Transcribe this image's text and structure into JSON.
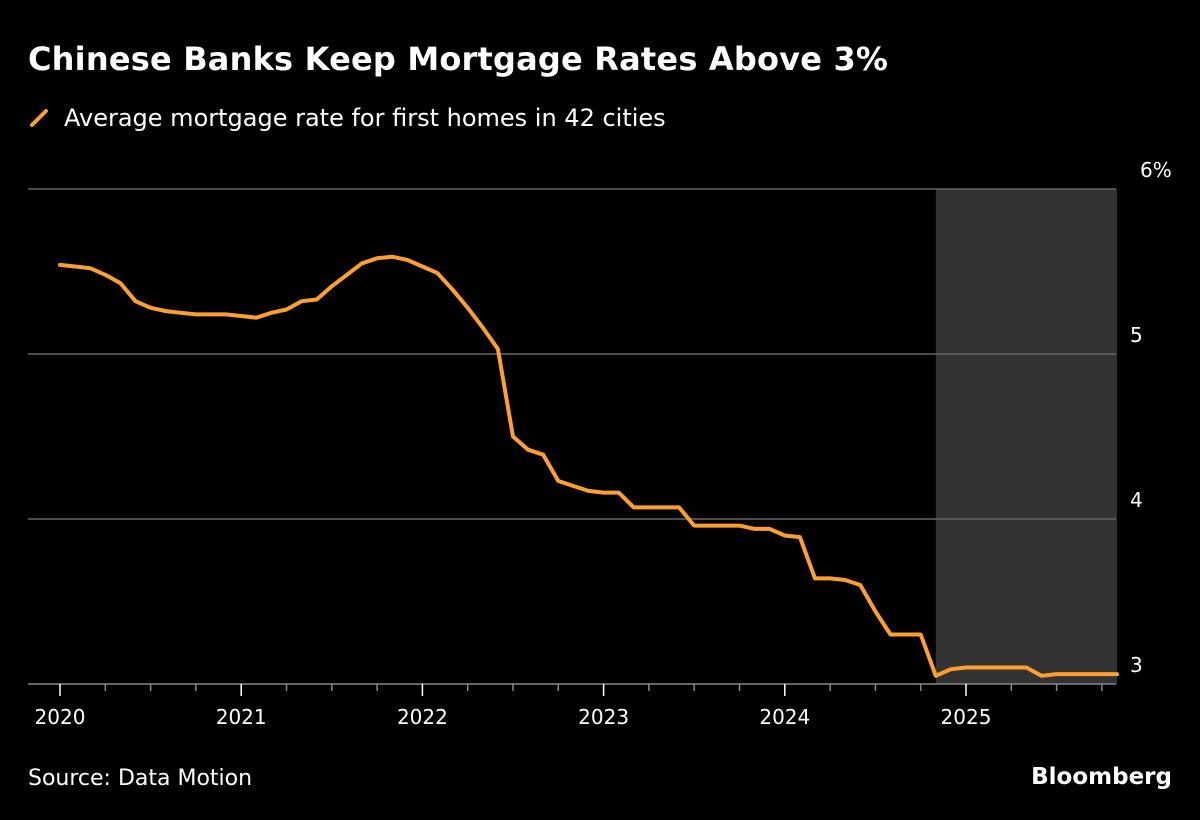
{
  "title": "Chinese Banks Keep Mortgage Rates Above 3%",
  "source": "Source: Data Motion",
  "brand": "Bloomberg",
  "colors": {
    "line": "#FF9F2E",
    "shade": "#333333",
    "grid": "#666666",
    "background": "#000000"
  },
  "chart_data": {
    "type": "line",
    "title": "Chinese Banks Keep Mortgage Rates Above 3%",
    "xlabel": "",
    "ylabel": "",
    "ylim": [
      3,
      6
    ],
    "y_ticks": [
      {
        "value": 6,
        "label": "6%"
      },
      {
        "value": 5,
        "label": "5"
      },
      {
        "value": 4,
        "label": "4"
      },
      {
        "value": 3,
        "label": "3"
      }
    ],
    "x_ticks": [
      {
        "month_index": 0,
        "label": "2020"
      },
      {
        "month_index": 12,
        "label": "2021"
      },
      {
        "month_index": 24,
        "label": "2022"
      },
      {
        "month_index": 36,
        "label": "2023"
      },
      {
        "month_index": 48,
        "label": "2024"
      },
      {
        "month_index": 60,
        "label": "2025"
      }
    ],
    "x_start": "2020-01",
    "shaded_range_month_index": [
      58,
      70
    ],
    "series": [
      {
        "name": "Average mortgage rate for first homes in 42 cities",
        "values": [
          5.54,
          5.53,
          5.52,
          5.48,
          5.43,
          5.32,
          5.28,
          5.26,
          5.25,
          5.24,
          5.24,
          5.24,
          5.23,
          5.22,
          5.25,
          5.27,
          5.32,
          5.33,
          5.41,
          5.48,
          5.55,
          5.58,
          5.59,
          5.57,
          5.53,
          5.49,
          5.39,
          5.28,
          5.16,
          5.03,
          4.5,
          4.42,
          4.39,
          4.23,
          4.2,
          4.17,
          4.16,
          4.16,
          4.07,
          4.07,
          4.07,
          4.07,
          3.96,
          3.96,
          3.96,
          3.96,
          3.94,
          3.94,
          3.9,
          3.89,
          3.64,
          3.64,
          3.63,
          3.6,
          3.44,
          3.3,
          3.3,
          3.3,
          3.05,
          3.09,
          3.1,
          3.1,
          3.1,
          3.1,
          3.1,
          3.05,
          3.06,
          3.06,
          3.06,
          3.06,
          3.06
        ]
      }
    ]
  }
}
